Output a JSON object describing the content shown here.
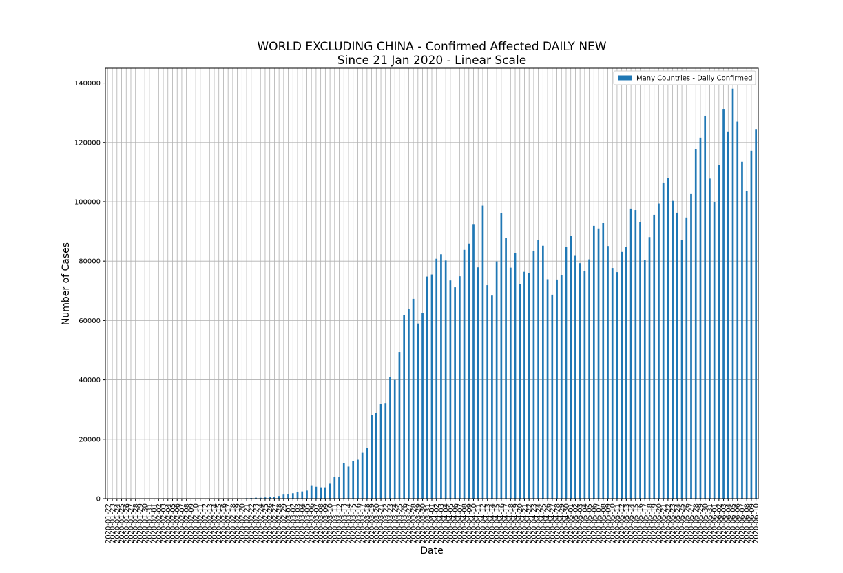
{
  "chart_data": {
    "type": "bar",
    "title": "WORLD EXCLUDING CHINA - Confirmed Affected DAILY NEW",
    "subtitle": "Since 21 Jan 2020 - Linear Scale",
    "x_label": "Date",
    "y_label": "Number of Cases",
    "categories": [
      "2020-01-22",
      "2020-01-23",
      "2020-01-24",
      "2020-01-25",
      "2020-01-26",
      "2020-01-27",
      "2020-01-28",
      "2020-01-29",
      "2020-01-30",
      "2020-01-31",
      "2020-02-01",
      "2020-02-02",
      "2020-02-03",
      "2020-02-04",
      "2020-02-05",
      "2020-02-06",
      "2020-02-07",
      "2020-02-08",
      "2020-02-09",
      "2020-02-10",
      "2020-02-11",
      "2020-02-12",
      "2020-02-13",
      "2020-02-14",
      "2020-02-15",
      "2020-02-16",
      "2020-02-17",
      "2020-02-18",
      "2020-02-19",
      "2020-02-20",
      "2020-02-21",
      "2020-02-22",
      "2020-02-23",
      "2020-02-24",
      "2020-02-25",
      "2020-02-26",
      "2020-02-27",
      "2020-02-28",
      "2020-02-29",
      "2020-03-01",
      "2020-03-02",
      "2020-03-03",
      "2020-03-04",
      "2020-03-05",
      "2020-03-06",
      "2020-03-07",
      "2020-03-08",
      "2020-03-09",
      "2020-03-10",
      "2020-03-11",
      "2020-03-12",
      "2020-03-13",
      "2020-03-14",
      "2020-03-15",
      "2020-03-16",
      "2020-03-17",
      "2020-03-18",
      "2020-03-19",
      "2020-03-20",
      "2020-03-21",
      "2020-03-22",
      "2020-03-23",
      "2020-03-24",
      "2020-03-25",
      "2020-03-26",
      "2020-03-27",
      "2020-03-28",
      "2020-03-29",
      "2020-03-30",
      "2020-03-31",
      "2020-04-01",
      "2020-04-02",
      "2020-04-03",
      "2020-04-04",
      "2020-04-05",
      "2020-04-06",
      "2020-04-07",
      "2020-04-08",
      "2020-04-09",
      "2020-04-10",
      "2020-04-11",
      "2020-04-12",
      "2020-04-13",
      "2020-04-14",
      "2020-04-15",
      "2020-04-16",
      "2020-04-17",
      "2020-04-18",
      "2020-04-19",
      "2020-04-20",
      "2020-04-21",
      "2020-04-22",
      "2020-04-23",
      "2020-04-24",
      "2020-04-25",
      "2020-04-26",
      "2020-04-27",
      "2020-04-28",
      "2020-04-29",
      "2020-04-30",
      "2020-05-01",
      "2020-05-02",
      "2020-05-03",
      "2020-05-04",
      "2020-05-05",
      "2020-05-06",
      "2020-05-07",
      "2020-05-08",
      "2020-05-09",
      "2020-05-10",
      "2020-05-11",
      "2020-05-12",
      "2020-05-13",
      "2020-05-14",
      "2020-05-15",
      "2020-05-16",
      "2020-05-17",
      "2020-05-18",
      "2020-05-19",
      "2020-05-20",
      "2020-05-21",
      "2020-05-22",
      "2020-05-23",
      "2020-05-24",
      "2020-05-25",
      "2020-05-26",
      "2020-05-27",
      "2020-05-28",
      "2020-05-29",
      "2020-05-30",
      "2020-05-31",
      "2020-06-01",
      "2020-06-02",
      "2020-06-03",
      "2020-06-04",
      "2020-06-05",
      "2020-06-06",
      "2020-06-07",
      "2020-06-08",
      "2020-06-09",
      "2020-06-10"
    ],
    "series": [
      {
        "name": "Many Countries - Daily Confirmed",
        "color": "#1f77b4",
        "values": [
          7,
          3,
          5,
          6,
          12,
          9,
          21,
          12,
          18,
          28,
          15,
          20,
          8,
          20,
          11,
          24,
          18,
          9,
          30,
          8,
          20,
          4,
          48,
          7,
          20,
          25,
          92,
          78,
          20,
          35,
          180,
          220,
          320,
          300,
          390,
          480,
          620,
          880,
          1350,
          1500,
          1800,
          2200,
          2400,
          2700,
          4500,
          4000,
          3800,
          3800,
          5000,
          7300,
          7400,
          12000,
          10800,
          12700,
          13100,
          15400,
          17000,
          28300,
          29000,
          32000,
          32200,
          41000,
          40000,
          49400,
          61800,
          63800,
          67300,
          59000,
          62500,
          74800,
          75500,
          80800,
          82300,
          80200,
          73500,
          71200,
          74900,
          83800,
          85900,
          92500,
          77900,
          98700,
          71900,
          68400,
          79900,
          96100,
          87900,
          77800,
          82700,
          72300,
          76400,
          76000,
          83500,
          87200,
          85200,
          73900,
          68700,
          73800,
          75400,
          84700,
          88400,
          82000,
          79300,
          76600,
          80600,
          91900,
          91000,
          92800,
          85100,
          77700,
          76300,
          83100,
          84900,
          97700,
          97200,
          93100,
          80500,
          88100,
          95600,
          99400,
          106500,
          107900,
          100300,
          96300,
          87000,
          94700,
          102800,
          117700,
          121600,
          129000,
          107800,
          99800,
          112500,
          131300,
          123700,
          138100,
          127000,
          113500,
          103700,
          117200,
          124300
        ]
      }
    ],
    "ylim": [
      0,
      145000
    ],
    "yticks": [
      0,
      20000,
      40000,
      60000,
      80000,
      100000,
      120000,
      140000
    ],
    "grid": true,
    "legend": "upper right"
  }
}
